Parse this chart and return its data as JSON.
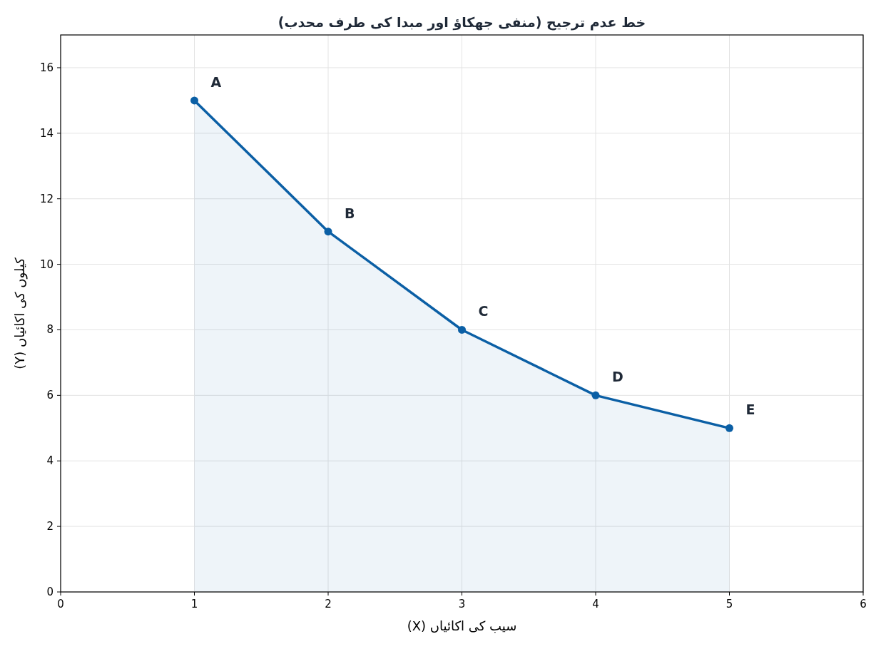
{
  "chart_data": {
    "type": "area",
    "title": "خط عدم ترجیح (منفی جھکاؤ اور مبدا کی طرف محدب)",
    "xlabel": "سیب کی اکائیاں (X)",
    "ylabel": "کیلوں کی اکائیاں (Y)",
    "x": [
      1,
      2,
      3,
      4,
      5
    ],
    "series": [
      {
        "color": "#0b5fa5",
        "values": [
          15,
          11,
          8,
          6,
          5
        ]
      }
    ],
    "xlim": [
      0,
      6
    ],
    "xticks": [
      0,
      1,
      2,
      3,
      4,
      5,
      6
    ],
    "ylim": [
      0,
      17
    ],
    "yticks": [
      0,
      2,
      4,
      6,
      8,
      10,
      12,
      14,
      16
    ],
    "grid": true,
    "marker": "circle",
    "annotations": [
      {
        "text": "A",
        "x": 1,
        "y": 15
      },
      {
        "text": "B",
        "x": 2,
        "y": 11
      },
      {
        "text": "C",
        "x": 3,
        "y": 8
      },
      {
        "text": "D",
        "x": 4,
        "y": 6
      },
      {
        "text": "E",
        "x": 5,
        "y": 5
      }
    ]
  }
}
